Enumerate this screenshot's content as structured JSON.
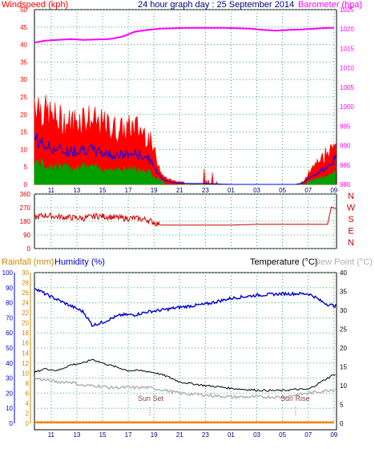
{
  "header": {
    "left_title": "Windspeed (kph)",
    "center_title": "24 hour graph day : 25 September 2014",
    "right_title": "Barometer (hpa)"
  },
  "bottom_header": {
    "rainfall": "Rainfall (mm)",
    "humidity": "Humidity (%)",
    "temperature": "Temperature (°C)",
    "dewpoint": "Dew Point (°C)"
  },
  "annotations": {
    "sun_set": "Sun Set",
    "sun_rise": "Sun Rise"
  },
  "colors": {
    "windspeed": "#ff0000",
    "gust_avg": "#0000ff",
    "wind_green": "#00a000",
    "barometer": "#ff00ff",
    "direction": "#cc0000",
    "humidity": "#0000cc",
    "temperature": "#000000",
    "dewpoint": "#b0b0b0",
    "rainfall": "#ff8000",
    "left_axis": "#ff0000",
    "right_axis": "#ff00ff",
    "blue_axis": "#0000cc",
    "orange_axis": "#cc8800",
    "grid": "#33aa66"
  },
  "chart_data": [
    {
      "type": "area",
      "panel": "wind",
      "x_ticks": [
        "11",
        "13",
        "15",
        "17",
        "19",
        "21",
        "23",
        "01",
        "03",
        "05",
        "07",
        "09"
      ],
      "ylabel_left": "Windspeed (kph)",
      "ylabel_right": "Barometer (hpa)",
      "ylim_left": [
        0,
        50
      ],
      "yticks_left": [
        0,
        5,
        10,
        15,
        20,
        25,
        30,
        35,
        40,
        45,
        50
      ],
      "ylim_right": [
        980,
        1025
      ],
      "yticks_right": [
        980,
        985,
        990,
        995,
        1000,
        1005,
        1010,
        1015,
        1020,
        1025
      ],
      "grid": true,
      "series": [
        {
          "name": "Windspeed (kph)",
          "x": [
            9.7,
            10.5,
            11.5,
            12.5,
            13.5,
            14.5,
            15.5,
            16.5,
            17.5,
            18.5,
            19.3,
            19.8,
            20.5,
            21.5,
            23,
            1,
            3,
            5,
            6,
            6.7,
            7,
            7.5,
            8,
            8.5,
            9
          ],
          "values": [
            24,
            20,
            18,
            17,
            19,
            17,
            16,
            15,
            16,
            14,
            6,
            2,
            1,
            0.5,
            0.5,
            0,
            0,
            0,
            0,
            1,
            3,
            5,
            7,
            9,
            13
          ]
        },
        {
          "name": "Barometer (hpa)",
          "x": [
            9.7,
            10.5,
            11.5,
            12.5,
            13.5,
            14.5,
            15.5,
            16.5,
            17.5,
            18.5,
            19.5,
            20.5,
            21.5,
            22.5,
            23.5,
            0.5,
            1.5,
            2.5,
            3.5,
            4.5,
            5.5,
            6.5,
            7.5,
            8.5,
            9
          ],
          "values": [
            1016.5,
            1017,
            1017.2,
            1017.4,
            1017.2,
            1017.3,
            1017.4,
            1018,
            1019.3,
            1019.8,
            1020.1,
            1020.2,
            1020.3,
            1020.3,
            1020.3,
            1020.3,
            1020.2,
            1020.1,
            1019.8,
            1019.6,
            1019.8,
            1019.9,
            1020.1,
            1020.3,
            1020.3
          ]
        }
      ]
    },
    {
      "type": "line",
      "panel": "direction",
      "x_ticks": [
        "11",
        "13",
        "15",
        "17",
        "19",
        "21",
        "23",
        "01",
        "03",
        "05",
        "07",
        "09"
      ],
      "ylim": [
        0,
        360
      ],
      "yticks": [
        0,
        90,
        180,
        270,
        360
      ],
      "right_labels": [
        "N",
        "W",
        "S",
        "E",
        "N"
      ],
      "grid": true,
      "series": [
        {
          "name": "Wind Direction",
          "x": [
            9.7,
            10.5,
            11.5,
            12.5,
            13.5,
            14.5,
            15.5,
            16.5,
            17.5,
            18.5,
            19.5,
            21,
            23,
            1,
            3,
            5,
            7,
            8.5,
            8.8,
            9
          ],
          "values": [
            205,
            220,
            210,
            205,
            200,
            215,
            210,
            200,
            200,
            190,
            155,
            155,
            155,
            155,
            160,
            160,
            160,
            160,
            275,
            265
          ]
        }
      ]
    },
    {
      "type": "line",
      "panel": "temperature",
      "x_ticks": [
        "11",
        "13",
        "15",
        "17",
        "19",
        "21",
        "23",
        "01",
        "03",
        "05",
        "07",
        "09"
      ],
      "ylim_humidity": [
        0,
        100
      ],
      "yticks_humidity": [
        0,
        10,
        20,
        30,
        40,
        50,
        60,
        70,
        80,
        90,
        100
      ],
      "ylim_rainfall": [
        0,
        30
      ],
      "yticks_rainfall": [
        0,
        2,
        4,
        6,
        8,
        10,
        12,
        14,
        16,
        18,
        20,
        22,
        24,
        26,
        28,
        30
      ],
      "ylim_temperature": [
        0,
        40
      ],
      "yticks_temperature": [
        0,
        5,
        10,
        15,
        20,
        25,
        30,
        35,
        40
      ],
      "grid": true,
      "series": [
        {
          "name": "Humidity (%)",
          "x": [
            9.7,
            10.5,
            11.5,
            12.5,
            13.5,
            14.2,
            15,
            15.8,
            16.5,
            17.5,
            18.5,
            19.5,
            21,
            23,
            1,
            3,
            5,
            6,
            6.5,
            7,
            7.5,
            8,
            8.5,
            9
          ],
          "values": [
            90,
            86,
            82,
            78,
            74,
            65,
            67,
            70,
            72,
            72,
            74,
            75,
            77,
            79,
            83,
            85,
            86,
            86,
            86,
            86,
            84,
            81,
            79,
            78
          ]
        },
        {
          "name": "Temperature (°C)",
          "x": [
            9.7,
            10.5,
            11.5,
            12.5,
            13.5,
            14.2,
            15,
            16,
            17,
            18,
            19,
            20,
            21,
            22,
            23,
            24,
            25,
            26,
            27,
            28,
            29,
            30,
            31,
            32,
            32.5,
            33
          ],
          "values": [
            13.5,
            14.5,
            14,
            15.5,
            16,
            17,
            16,
            15,
            14,
            14,
            13.5,
            12.5,
            11,
            10.5,
            10,
            9.7,
            9.3,
            9,
            8.8,
            8.7,
            8.7,
            9,
            9,
            11,
            12,
            13
          ]
        },
        {
          "name": "Dew Point (°C)",
          "x": [
            9.7,
            10.5,
            11.5,
            12.5,
            13.5,
            14.5,
            15.5,
            16.5,
            17.5,
            18.5,
            19.5,
            21,
            23,
            25,
            27,
            29,
            30,
            31,
            32,
            33
          ],
          "values": [
            12,
            11.5,
            11,
            11,
            10,
            10,
            9.5,
            9.5,
            9.5,
            9.5,
            9,
            8,
            7.5,
            7,
            7,
            7,
            7.5,
            8,
            8.5,
            9
          ]
        },
        {
          "name": "Rainfall (mm)",
          "x": [
            9.7,
            33
          ],
          "values": [
            0.2,
            0.2
          ]
        }
      ]
    }
  ]
}
